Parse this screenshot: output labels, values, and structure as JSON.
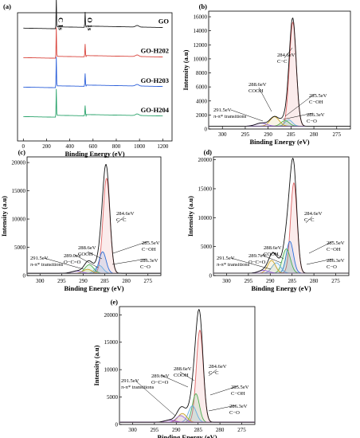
{
  "chart_data": [
    {
      "panel": "(a)",
      "type": "line",
      "xlabel": "Binding Energy (eV)",
      "xticks": [
        0,
        200,
        400,
        600,
        800,
        1000,
        1200
      ],
      "xlim": [
        -50,
        1280
      ],
      "peak_labels": [
        "C 1s",
        "O 1s"
      ],
      "series": [
        {
          "name": "GO",
          "color": "#222222",
          "baseline": 0.86,
          "C1s_peak": 0.24,
          "O1s_peak": 0.12
        },
        {
          "name": "GO-H202",
          "color": "#d9453d",
          "baseline": 0.63,
          "C1s_peak": 0.24,
          "O1s_peak": 0.1
        },
        {
          "name": "GO-H203",
          "color": "#2b5fd9",
          "baseline": 0.4,
          "C1s_peak": 0.24,
          "O1s_peak": 0.1
        },
        {
          "name": "GO-H204",
          "color": "#2aa36b",
          "baseline": 0.17,
          "C1s_peak": 0.22,
          "O1s_peak": 0.08
        }
      ]
    },
    {
      "panel": "(b)",
      "type": "line",
      "xlabel": "Binding Energy (eV)",
      "ylabel": "Intensity (a.u)",
      "xlim": [
        303,
        272
      ],
      "ylim": [
        0,
        16800
      ],
      "xticks": [
        300,
        295,
        290,
        285,
        280,
        275
      ],
      "yticks": [
        0,
        2000,
        4000,
        6000,
        8000,
        10000,
        12000,
        14000,
        16000
      ],
      "baseline": 400,
      "components": [
        {
          "energy": 284.6,
          "amplitude": 14800,
          "sigma": 0.75,
          "color": "#e06666"
        },
        {
          "energy": 285.5,
          "amplitude": 900,
          "sigma": 0.8,
          "color": "#6ab0e0"
        },
        {
          "energy": 286.3,
          "amplitude": 800,
          "sigma": 0.9,
          "color": "#4caf50"
        },
        {
          "energy": 288.6,
          "amplitude": 1350,
          "sigma": 1.0,
          "color": "#c9a227"
        },
        {
          "energy": 291.5,
          "amplitude": 450,
          "sigma": 1.2,
          "color": "#9c6ade"
        }
      ],
      "annotations": [
        {
          "text": [
            "284.6eV",
            "C−C"
          ]
        },
        {
          "text": [
            "285.5eV",
            "C−OH"
          ]
        },
        {
          "text": [
            "286.3eV",
            "C−O"
          ]
        },
        {
          "text": [
            "288.6eV",
            "COOH"
          ]
        },
        {
          "text": [
            "291.5eV",
            "π-π* transitions"
          ]
        }
      ]
    },
    {
      "panel": "(c)",
      "type": "line",
      "xlabel": "Binding Energy (eV)",
      "ylabel": "Intensity (a.u)",
      "xlim": [
        303,
        272
      ],
      "ylim": [
        0,
        21000
      ],
      "xticks": [
        300,
        295,
        290,
        285,
        280,
        275
      ],
      "yticks": [
        0,
        5000,
        10000,
        15000,
        20000
      ],
      "baseline": 400,
      "components": [
        {
          "energy": 284.6,
          "amplitude": 16800,
          "sigma": 0.8,
          "color": "#e06666"
        },
        {
          "energy": 285.5,
          "amplitude": 3800,
          "sigma": 0.8,
          "color": "#2b6fd9"
        },
        {
          "energy": 286.3,
          "amplitude": 1400,
          "sigma": 0.9,
          "color": "#6ab0e0"
        },
        {
          "energy": 288.6,
          "amplitude": 1500,
          "sigma": 1.0,
          "color": "#4caf50"
        },
        {
          "energy": 289.0,
          "amplitude": 700,
          "sigma": 1.0,
          "color": "#c9a227"
        },
        {
          "energy": 291.5,
          "amplitude": 400,
          "sigma": 1.2,
          "color": "#9c6ade"
        }
      ],
      "annotations": [
        {
          "text": [
            "284.6eV",
            "C−C"
          ]
        },
        {
          "text": [
            "285.5eV",
            "C−OH"
          ]
        },
        {
          "text": [
            "286.3eV",
            "C−O"
          ]
        },
        {
          "text": [
            "288.6eV",
            "COOH"
          ]
        },
        {
          "text": [
            "289.0eV",
            "O−C=O"
          ]
        },
        {
          "text": [
            "291.5eV",
            "π-π* transitions"
          ]
        }
      ]
    },
    {
      "panel": "(d)",
      "type": "line",
      "xlabel": "Binding Energy (eV)",
      "ylabel": "Intensity (a.u)",
      "xlim": [
        303,
        272
      ],
      "ylim": [
        0,
        20500
      ],
      "xticks": [
        300,
        295,
        290,
        285,
        280,
        275
      ],
      "yticks": [
        0,
        5000,
        10000,
        15000,
        20000
      ],
      "baseline": 400,
      "components": [
        {
          "energy": 284.6,
          "amplitude": 15600,
          "sigma": 0.75,
          "color": "#e06666"
        },
        {
          "energy": 285.5,
          "amplitude": 5500,
          "sigma": 0.8,
          "color": "#2b6fd9"
        },
        {
          "energy": 286.3,
          "amplitude": 4200,
          "sigma": 0.9,
          "color": "#4caf50"
        },
        {
          "energy": 288.6,
          "amplitude": 1800,
          "sigma": 1.0,
          "color": "#6ab0e0"
        },
        {
          "energy": 289.7,
          "amplitude": 2200,
          "sigma": 0.9,
          "color": "#c9a227"
        },
        {
          "energy": 291.5,
          "amplitude": 500,
          "sigma": 1.2,
          "color": "#9c6ade"
        }
      ],
      "annotations": [
        {
          "text": [
            "284.6eV",
            "C−C"
          ]
        },
        {
          "text": [
            "285.5eV",
            "C−OH"
          ]
        },
        {
          "text": [
            "286.3eV",
            "C−O"
          ]
        },
        {
          "text": [
            "288.6eV",
            "COOH"
          ]
        },
        {
          "text": [
            "289.7eV",
            "O−C=O"
          ]
        },
        {
          "text": [
            "291.5eV",
            "π-π* transitions"
          ]
        }
      ]
    },
    {
      "panel": "(e)",
      "type": "line",
      "xlabel": "Binding Energy (eV)",
      "ylabel": "Intensity (a.u)",
      "xlim": [
        303,
        272
      ],
      "ylim": [
        0,
        21500
      ],
      "xticks": [
        300,
        295,
        290,
        285,
        280,
        275
      ],
      "yticks": [
        0,
        5000,
        10000,
        15000,
        20000
      ],
      "baseline": 400,
      "components": [
        {
          "energy": 284.6,
          "amplitude": 16800,
          "sigma": 0.8,
          "color": "#e06666"
        },
        {
          "energy": 285.5,
          "amplitude": 5200,
          "sigma": 0.8,
          "color": "#4caf50"
        },
        {
          "energy": 286.3,
          "amplitude": 3000,
          "sigma": 0.9,
          "color": "#6ab0e0"
        },
        {
          "energy": 288.6,
          "amplitude": 1600,
          "sigma": 1.0,
          "color": "#c9a227"
        },
        {
          "energy": 289.0,
          "amplitude": 1200,
          "sigma": 1.0,
          "color": "#9c6ade"
        },
        {
          "energy": 291.5,
          "amplitude": 400,
          "sigma": 1.2,
          "color": "#8e44ad"
        }
      ],
      "annotations": [
        {
          "text": [
            "284.6eV",
            "C−C"
          ]
        },
        {
          "text": [
            "285.5eV",
            "C−OH"
          ]
        },
        {
          "text": [
            "286.3eV",
            "C−O"
          ]
        },
        {
          "text": [
            "288.6eV",
            "COOH"
          ]
        },
        {
          "text": [
            "289.0eV",
            "O−C=O"
          ]
        },
        {
          "text": [
            "291.5eV",
            "π-π* transitions"
          ]
        }
      ]
    }
  ]
}
